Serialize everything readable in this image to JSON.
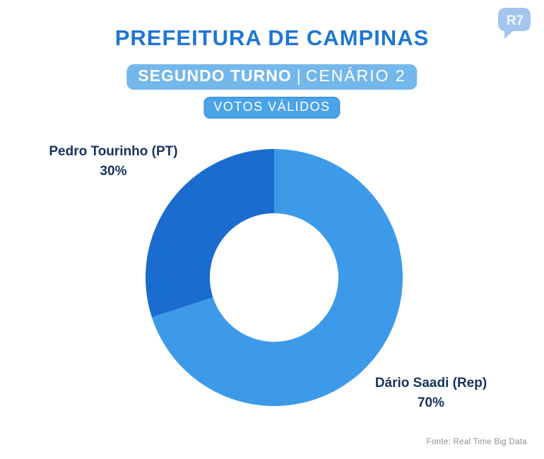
{
  "logo": {
    "text": "R7"
  },
  "header": {
    "title": "PREFEITURA DE CAMPINAS",
    "badge_round": {
      "bold": "SEGUNDO TURNO",
      "separator": "|",
      "regular": "CENÁRIO 2"
    },
    "badge_votes": "VOTOS VÁLIDOS"
  },
  "footer": {
    "source": "Fonte: Real Time Big Data"
  },
  "chart_data": {
    "type": "pie",
    "subtype": "donut",
    "title": "PREFEITURA DE CAMPINAS",
    "subtitle": "SEGUNDO TURNO | CENÁRIO 2",
    "annotation": "VOTOS VÁLIDOS",
    "unit": "%",
    "start_angle": "top",
    "direction": "clockwise",
    "inner_radius_ratio": 0.5,
    "series": [
      {
        "label": "Dário Saadi (Rep)",
        "value": 70,
        "display": "70%",
        "color": "#3D9AE9",
        "label_position": "bottom-right"
      },
      {
        "label": "Pedro Tourinho (PT)",
        "value": 30,
        "display": "30%",
        "color": "#1A6CCE",
        "label_position": "top-left"
      }
    ],
    "source": "Fonte: Real Time Big Data"
  }
}
